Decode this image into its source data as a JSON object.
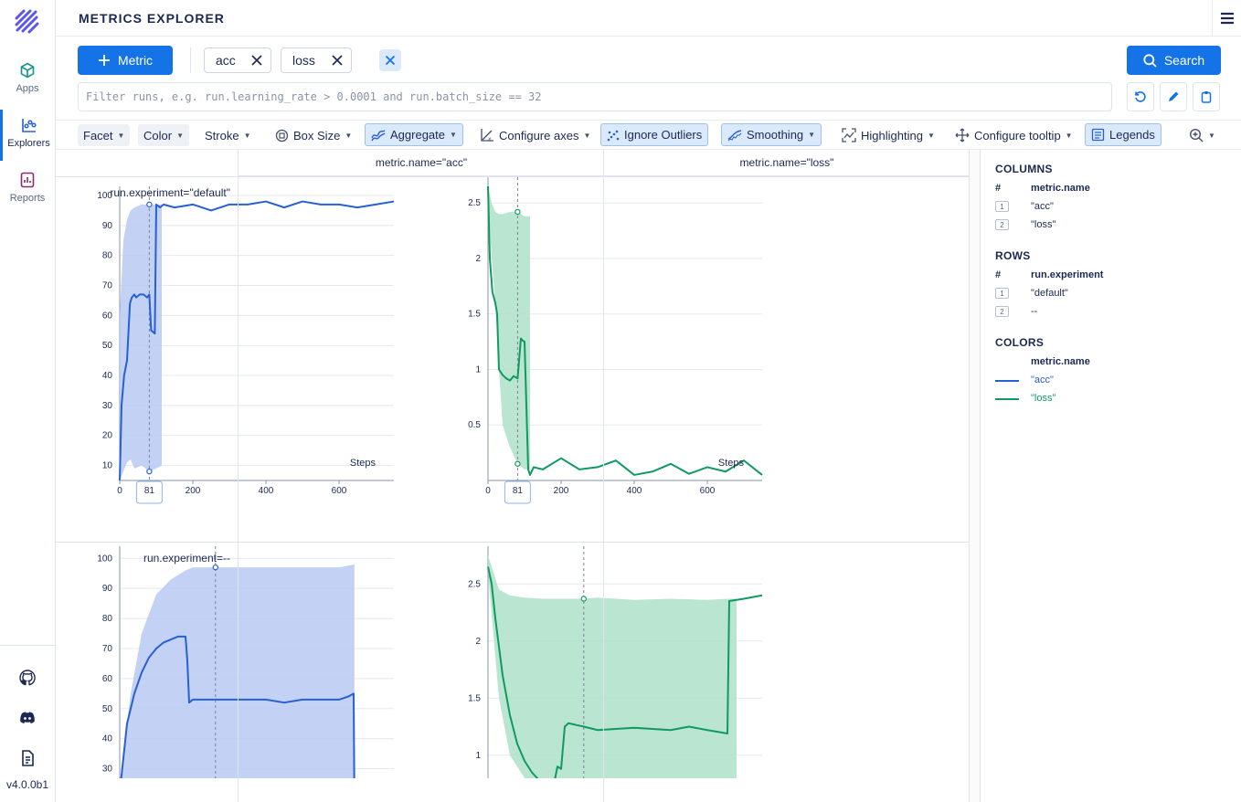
{
  "sidebar": {
    "items": [
      {
        "label": "Apps",
        "icon": "cube-icon"
      },
      {
        "label": "Explorers",
        "icon": "chart-icon"
      },
      {
        "label": "Reports",
        "icon": "report-icon"
      }
    ],
    "bottom_icons": [
      "github-icon",
      "discord-icon",
      "docs-icon"
    ],
    "version": "v4.0.0b1"
  },
  "header": {
    "title": "METRICS EXPLORER"
  },
  "metric_button": {
    "label": "Metric"
  },
  "chips": [
    "acc",
    "loss"
  ],
  "search_button": {
    "label": "Search"
  },
  "filter": {
    "placeholder": "Filter runs, e.g. run.learning_rate > 0.0001 and run.batch_size == 32"
  },
  "toolbar": {
    "facet": "Facet",
    "color": "Color",
    "stroke": "Stroke",
    "box_size": "Box Size",
    "aggregate": "Aggregate",
    "configure_axes": "Configure axes",
    "ignore_outliers": "Ignore Outliers",
    "smoothing": "Smoothing",
    "highlighting": "Highlighting",
    "configure_tooltip": "Configure tooltip",
    "legends": "Legends"
  },
  "grid": {
    "columns": [
      "metric.name=\"acc\"",
      "metric.name=\"loss\""
    ],
    "rows": [
      "run.experiment=\"default\"",
      "run.experiment=--"
    ]
  },
  "colors": {
    "acc": "#2660d4",
    "acc_band": "#b8c9f2",
    "loss": "#109a61",
    "loss_band": "#aee0c9",
    "accent": "#1473e6"
  },
  "chart_data": [
    {
      "type": "line",
      "facet": "acc / default",
      "xlabel": "Steps",
      "ylim": [
        5,
        100
      ],
      "xlim": [
        0,
        750
      ],
      "yticks": [
        10,
        20,
        30,
        40,
        50,
        60,
        70,
        80,
        90,
        100
      ],
      "xticks": [
        0,
        200,
        400,
        600
      ],
      "cursor_x": 81,
      "cursor_label": "81",
      "series": [
        {
          "name": "acc",
          "x": [
            0,
            5,
            12,
            20,
            28,
            33,
            40,
            45,
            55,
            65,
            75,
            81,
            86,
            96,
            100,
            110,
            120,
            150,
            200,
            250,
            300,
            350,
            400,
            450,
            500,
            550,
            600,
            650,
            700,
            750
          ],
          "y": [
            5,
            30,
            40,
            45,
            64,
            66,
            67,
            66,
            67,
            67,
            66,
            67,
            55,
            54,
            97,
            96,
            97,
            96,
            97,
            95,
            97,
            97,
            98,
            96,
            98,
            97,
            97,
            96,
            97,
            98
          ]
        }
      ],
      "band": {
        "x": [
          0,
          10,
          20,
          30,
          40,
          60,
          81,
          100,
          115
        ],
        "upper": [
          60,
          85,
          92,
          95,
          96,
          97,
          97,
          97,
          97
        ],
        "lower": [
          5,
          8,
          11,
          12,
          9,
          10,
          8,
          9,
          10
        ]
      }
    },
    {
      "type": "line",
      "facet": "loss / default",
      "xlabel": "Steps",
      "ylim": [
        0,
        2.65
      ],
      "xlim": [
        0,
        750
      ],
      "yticks": [
        0.5,
        1,
        1.5,
        2,
        2.5
      ],
      "xticks": [
        0,
        200,
        400,
        600
      ],
      "cursor_x": 81,
      "cursor_label": "81",
      "series": [
        {
          "name": "loss",
          "x": [
            0,
            5,
            12,
            20,
            25,
            30,
            40,
            50,
            60,
            70,
            81,
            90,
            95,
            100,
            110,
            115,
            125,
            150,
            200,
            250,
            300,
            350,
            400,
            450,
            500,
            550,
            600,
            650,
            700,
            750
          ],
          "y": [
            2.65,
            2.0,
            1.7,
            1.6,
            1.5,
            1.0,
            0.95,
            0.92,
            0.9,
            0.94,
            0.92,
            1.28,
            1.26,
            1.25,
            0.1,
            0.05,
            0.12,
            0.1,
            0.2,
            0.1,
            0.12,
            0.18,
            0.05,
            0.08,
            0.15,
            0.06,
            0.12,
            0.08,
            0.18,
            0.05
          ]
        }
      ],
      "band": {
        "x": [
          0,
          10,
          20,
          30,
          40,
          60,
          81,
          100,
          115
        ],
        "upper": [
          2.65,
          2.5,
          2.42,
          2.4,
          2.4,
          2.42,
          2.42,
          2.38,
          2.38
        ],
        "lower": [
          2.6,
          2.0,
          1.6,
          1.0,
          0.5,
          0.3,
          0.15,
          0.1,
          0.1
        ]
      }
    },
    {
      "type": "line",
      "facet": "acc / --",
      "ylim": [
        25,
        101
      ],
      "xlim": [
        0,
        750
      ],
      "yticks": [
        30,
        40,
        50,
        60,
        70,
        80,
        90,
        100
      ],
      "cursor_x": 262,
      "series": [
        {
          "name": "acc",
          "x": [
            0,
            20,
            40,
            60,
            80,
            100,
            120,
            140,
            160,
            180,
            185,
            190,
            200,
            220,
            260,
            300,
            350,
            400,
            450,
            500,
            550,
            600,
            625,
            640,
            642
          ],
          "y": [
            22,
            45,
            55,
            62,
            67,
            70,
            72,
            73,
            74,
            74,
            66,
            52,
            53,
            53,
            53,
            53,
            53,
            53,
            52,
            53,
            53,
            53,
            54,
            55,
            20
          ]
        }
      ],
      "band": {
        "x": [
          0,
          30,
          60,
          100,
          140,
          180,
          200,
          262,
          300,
          400,
          500,
          600,
          642
        ],
        "upper": [
          25,
          55,
          75,
          88,
          93,
          96,
          97,
          97,
          97,
          97,
          97,
          97,
          98
        ],
        "lower": [
          20,
          20,
          20,
          20,
          20,
          20,
          20,
          20,
          20,
          20,
          20,
          20,
          20
        ]
      }
    },
    {
      "type": "line",
      "facet": "loss / --",
      "ylim": [
        0.75,
        2.75
      ],
      "xlim": [
        0,
        750
      ],
      "yticks": [
        1,
        1.5,
        2,
        2.5
      ],
      "cursor_x": 262,
      "series": [
        {
          "name": "loss",
          "x": [
            0,
            10,
            20,
            40,
            60,
            80,
            100,
            120,
            140,
            160,
            180,
            190,
            200,
            210,
            220,
            262,
            300,
            400,
            500,
            550,
            600,
            655,
            660,
            700,
            750
          ],
          "y": [
            2.65,
            2.5,
            2.2,
            1.7,
            1.35,
            1.1,
            0.95,
            0.85,
            0.78,
            0.76,
            0.74,
            0.9,
            0.88,
            1.25,
            1.28,
            1.25,
            1.22,
            1.24,
            1.22,
            1.25,
            1.22,
            1.19,
            2.35,
            2.37,
            2.4
          ]
        }
      ],
      "band": {
        "x": [
          0,
          30,
          60,
          100,
          150,
          200,
          262,
          300,
          400,
          500,
          600,
          655,
          680
        ],
        "upper": [
          2.75,
          2.45,
          2.4,
          2.38,
          2.37,
          2.37,
          2.37,
          2.38,
          2.36,
          2.37,
          2.36,
          2.37,
          2.37
        ],
        "lower": [
          2.6,
          1.5,
          1.0,
          0.8,
          0.7,
          0.7,
          0.7,
          0.7,
          0.7,
          0.7,
          0.7,
          0.7,
          0.7
        ]
      }
    }
  ],
  "legend": {
    "columns_title": "COLUMNS",
    "columns_key": "metric.name",
    "columns": [
      {
        "n": "1",
        "v": "\"acc\""
      },
      {
        "n": "2",
        "v": "\"loss\""
      }
    ],
    "rows_title": "ROWS",
    "rows_key": "run.experiment",
    "rows": [
      {
        "n": "1",
        "v": "\"default\""
      },
      {
        "n": "2",
        "v": "--"
      }
    ],
    "colors_title": "COLORS",
    "colors_key": "metric.name",
    "colors": [
      {
        "v": "\"acc\""
      },
      {
        "v": "\"loss\""
      }
    ],
    "hash": "#"
  }
}
